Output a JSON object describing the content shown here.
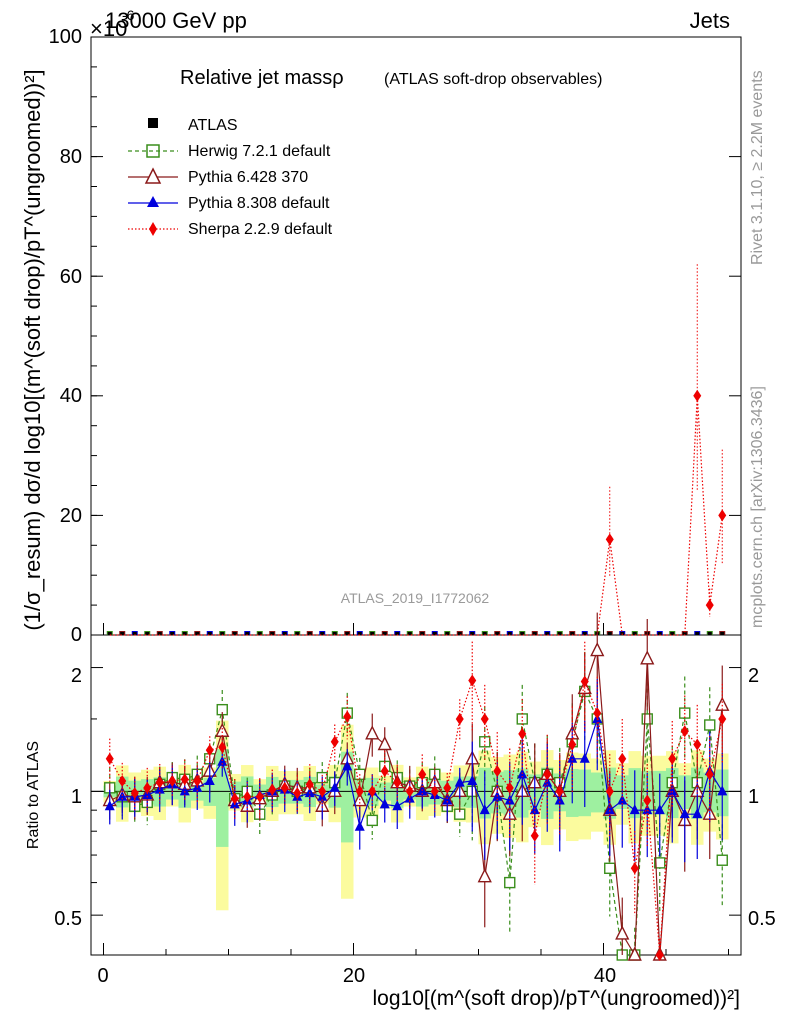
{
  "header": {
    "left": "13000 GeV pp",
    "exponent": "×10",
    "exponent_power": "-6",
    "right": "Jets"
  },
  "side_text": {
    "rivet": "Rivet 3.1.10, ≥ 2.2M events",
    "mcplots": "mcplots.cern.ch [arXiv:1306.3436]"
  },
  "watermark": "ATLAS_2019_I1772062",
  "legend": {
    "title_main": "Relative jet massρ",
    "title_sub": "(ATLAS soft-drop observables)",
    "entries": [
      "ATLAS",
      "Herwig 7.2.1 default",
      "Pythia 6.428 370",
      "Pythia 8.308 default",
      "Sherpa 2.2.9 default"
    ]
  },
  "axes": {
    "ylabel_main": "(1/σ_resum) dσ/d log10[(m^(soft drop)/pT^(ungroomed))²]",
    "ylabel_ratio": "Ratio to ATLAS",
    "xlabel": "log10[(m^(soft drop)/pT^(ungroomed))²]",
    "main_ticks": [
      "0",
      "20",
      "40",
      "60",
      "80",
      "100"
    ],
    "ratio_ticks": [
      "0.5",
      "1",
      "2"
    ],
    "x_ticks": [
      "0",
      "20",
      "40"
    ]
  },
  "colors": {
    "atlas": "#000000",
    "herwig": "#3a8e1c",
    "pythia6": "#8b1a1a",
    "pythia8": "#0000dd",
    "sherpa": "#ee0000",
    "band_yellow": "#fbfb9e",
    "band_green": "#9ef0a0"
  },
  "chart_data": {
    "type": "line",
    "x_range": [
      -1,
      51
    ],
    "main_ylim": [
      0,
      100
    ],
    "main_y_scale_factor": "1e-6",
    "ratio_ylim": [
      0.4,
      2.4
    ],
    "ratio_scale": "log",
    "x": [
      0.5,
      1.5,
      2.5,
      3.5,
      4.5,
      5.5,
      6.5,
      7.5,
      8.5,
      9.5,
      10.5,
      11.5,
      12.5,
      13.5,
      14.5,
      15.5,
      16.5,
      17.5,
      18.5,
      19.5,
      20.5,
      21.5,
      22.5,
      23.5,
      24.5,
      25.5,
      26.5,
      27.5,
      28.5,
      29.5,
      30.5,
      31.5,
      32.5,
      33.5,
      34.5,
      35.5,
      36.5,
      37.5,
      38.5,
      39.5,
      40.5,
      41.5,
      42.5,
      43.5,
      44.5,
      45.5,
      46.5,
      47.5,
      48.5,
      49.5
    ],
    "main_series": [
      {
        "name": "ATLAS",
        "values": [
          0,
          0,
          0,
          0,
          0,
          0,
          0,
          0,
          0,
          0,
          0,
          0,
          0,
          0,
          0,
          0,
          0,
          0,
          0,
          0,
          0,
          0,
          0,
          0,
          0,
          0,
          0,
          0,
          0,
          0,
          0,
          0,
          0,
          0,
          0,
          0,
          0,
          0,
          0,
          0,
          0,
          0,
          0,
          0,
          0,
          0,
          0,
          0,
          0,
          0
        ]
      },
      {
        "name": "Sherpa 2.2.9 default",
        "values": [
          0,
          0,
          0,
          0,
          0,
          0,
          0,
          0,
          0,
          0,
          0,
          0,
          0,
          0,
          0,
          0,
          0,
          0,
          0,
          0,
          0,
          0,
          0,
          0,
          0,
          0,
          0,
          0,
          0,
          0,
          0,
          0,
          0,
          0,
          0,
          0,
          0,
          0,
          0,
          0,
          16,
          0,
          0,
          0,
          0,
          0,
          0,
          40,
          5,
          20
        ]
      }
    ],
    "ratio_series": [
      {
        "name": "Herwig 7.2.1 default",
        "values": [
          1.02,
          0.97,
          0.92,
          0.94,
          1.04,
          1.08,
          1.07,
          1.1,
          1.2,
          1.58,
          0.96,
          1.0,
          0.88,
          0.98,
          1.03,
          1.0,
          1.02,
          1.08,
          1.05,
          1.55,
          1.1,
          0.85,
          1.15,
          1.08,
          1.03,
          1.05,
          1.1,
          0.92,
          0.88,
          1.0,
          1.32,
          1.0,
          0.6,
          1.5,
          1.05,
          1.1,
          1.05,
          1.32,
          1.75,
          1.5,
          0.65,
          0.4,
          0.38,
          1.5,
          0.67,
          1.05,
          1.55,
          1.05,
          1.45,
          0.68
        ]
      },
      {
        "name": "Pythia 6.428 370",
        "values": [
          0.95,
          0.98,
          0.97,
          0.98,
          1.05,
          1.05,
          1.04,
          1.06,
          1.12,
          1.4,
          0.95,
          0.92,
          0.96,
          1.0,
          1.04,
          1.02,
          1.02,
          0.92,
          1.0,
          1.2,
          0.95,
          1.38,
          1.3,
          1.05,
          1.03,
          1.0,
          1.05,
          0.95,
          1.0,
          1.2,
          0.62,
          1.0,
          0.88,
          1.0,
          1.05,
          1.1,
          1.0,
          1.38,
          1.78,
          2.2,
          0.9,
          0.45,
          0.32,
          2.1,
          0.2,
          1.0,
          0.85,
          1.0,
          0.88,
          1.62
        ]
      },
      {
        "name": "Pythia 8.308 default",
        "values": [
          0.92,
          0.97,
          0.97,
          0.98,
          1.01,
          1.04,
          1.0,
          1.02,
          1.06,
          1.18,
          0.93,
          0.95,
          0.98,
          1.0,
          1.01,
          0.97,
          0.99,
          0.97,
          1.02,
          1.15,
          0.82,
          1.0,
          0.93,
          0.92,
          0.96,
          1.0,
          0.98,
          0.95,
          1.05,
          1.06,
          0.9,
          0.97,
          0.95,
          1.1,
          0.9,
          1.05,
          0.95,
          1.2,
          1.2,
          1.5,
          0.9,
          0.95,
          0.9,
          0.9,
          0.9,
          1.0,
          0.88,
          0.88,
          1.12,
          1.0
        ]
      },
      {
        "name": "Sherpa 2.2.9 default",
        "values": [
          1.2,
          1.06,
          0.99,
          1.02,
          1.05,
          1.06,
          1.07,
          1.06,
          1.26,
          1.28,
          0.96,
          0.97,
          0.97,
          1.01,
          1.02,
          0.99,
          1.04,
          1.0,
          1.32,
          1.52,
          1.0,
          1.0,
          1.12,
          1.05,
          1.0,
          1.1,
          1.0,
          1.02,
          1.5,
          1.86,
          1.5,
          1.12,
          1.02,
          1.38,
          0.78,
          1.1,
          1.0,
          1.3,
          1.85,
          1.55,
          1.0,
          1.2,
          0.65,
          0.95,
          0.35,
          1.2,
          1.4,
          1.3,
          1.1,
          1.5
        ]
      }
    ]
  }
}
